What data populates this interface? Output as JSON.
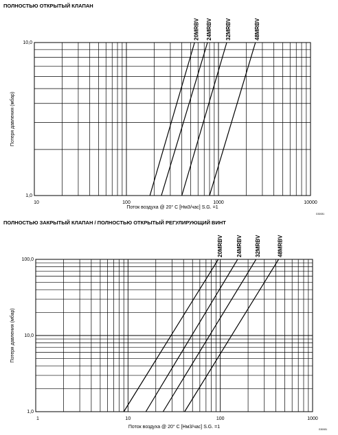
{
  "chart_data": [
    {
      "type": "line",
      "title": "ПОЛНОСТЬЮ ОТКРЫТЫЙ КЛАПАН",
      "x_label": "Поток воздуха @ 20° C [Нм3/час] S.G. =1",
      "y_label": "Потеря давления (мбар)",
      "xscale": "log",
      "yscale": "log",
      "grid": true,
      "minor_grid": true,
      "xlim": [
        10,
        10000
      ],
      "xticks": [
        10,
        100,
        1000,
        10000
      ],
      "ylim": [
        1,
        10
      ],
      "yticks": [
        {
          "value": 1,
          "label": "1,0"
        },
        {
          "value": 10,
          "label": "10,0"
        }
      ],
      "series": [
        {
          "name": "20MRBV",
          "color": "#000000",
          "x": [
            180,
            550
          ],
          "values": [
            1,
            10
          ]
        },
        {
          "name": "24MRBV",
          "color": "#000000",
          "x": [
            240,
            760
          ],
          "values": [
            1,
            10
          ]
        },
        {
          "name": "32MRBV",
          "color": "#000000",
          "x": [
            400,
            1230
          ],
          "values": [
            1,
            10
          ]
        },
        {
          "name": "48MRBV",
          "color": "#000000",
          "x": [
            800,
            2520
          ],
          "values": [
            1,
            10
          ]
        }
      ],
      "code": "G30081"
    },
    {
      "type": "line",
      "title": "ПОЛНОСТЬЮ ЗАКРЫТЫЙ КЛАПАН / ПОЛНОСТЬЮ ОТКРЫТЫЙ РЕГУЛИРУЮЩИЙ ВИНТ",
      "x_label": "Поток воздуха @ 20° C [Нм3/час] S.G. =1",
      "y_label": "Потеря давления (мбар)",
      "xscale": "log",
      "yscale": "log",
      "grid": true,
      "minor_grid": true,
      "xlim": [
        1,
        1000
      ],
      "xticks": [
        1,
        10,
        100,
        1000
      ],
      "ylim": [
        1,
        100
      ],
      "yticks": [
        {
          "value": 1,
          "label": "1,0"
        },
        {
          "value": 10,
          "label": "10,0"
        },
        {
          "value": 100,
          "label": "100,0"
        }
      ],
      "series": [
        {
          "name": "20MRBV",
          "color": "#000000",
          "x": [
            9,
            95
          ],
          "values": [
            1,
            100
          ]
        },
        {
          "name": "24MRBV",
          "color": "#000000",
          "x": [
            15.6,
            154
          ],
          "values": [
            1,
            100
          ]
        },
        {
          "name": "32MRBV",
          "color": "#000000",
          "x": [
            24,
            244
          ],
          "values": [
            1,
            100
          ]
        },
        {
          "name": "48MRBV",
          "color": "#000000",
          "x": [
            41,
            428
          ],
          "values": [
            1,
            100
          ]
        }
      ],
      "code": "G30081"
    }
  ]
}
